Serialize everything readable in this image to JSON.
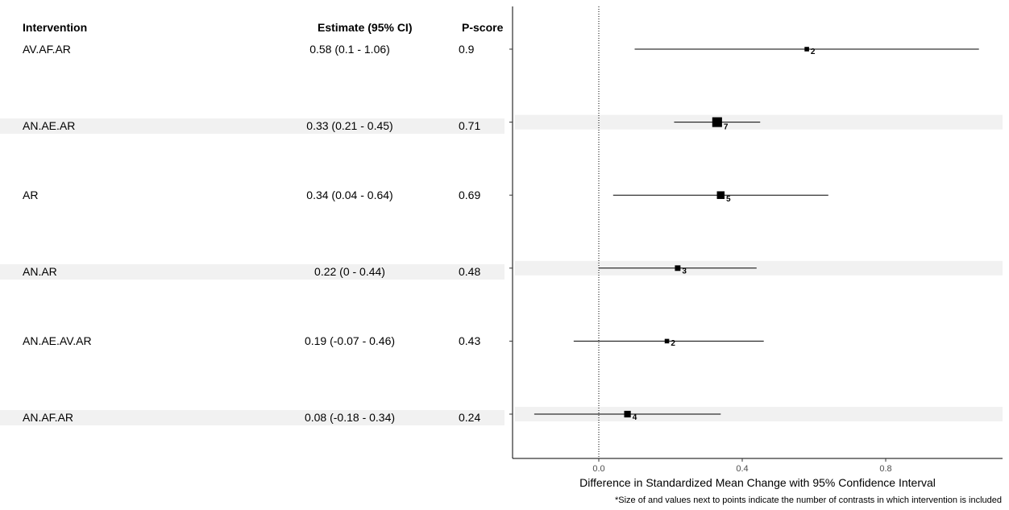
{
  "table": {
    "headers": {
      "intervention": "Intervention",
      "estimate": "Estimate (95% CI)",
      "pscore": "P-score"
    },
    "rows": [
      {
        "intervention": "AV.AF.AR",
        "estimate": "0.58 (0.1 - 1.06)",
        "pscore": "0.9",
        "shaded": false
      },
      {
        "intervention": "AN.AE.AR",
        "estimate": "0.33 (0.21 - 0.45)",
        "pscore": "0.71",
        "shaded": true
      },
      {
        "intervention": "AR",
        "estimate": "0.34 (0.04 - 0.64)",
        "pscore": "0.69",
        "shaded": false
      },
      {
        "intervention": "AN.AR",
        "estimate": "0.22 (0 - 0.44)",
        "pscore": "0.48",
        "shaded": true
      },
      {
        "intervention": "AN.AE.AV.AR",
        "estimate": "0.19 (-0.07 - 0.46)",
        "pscore": "0.43",
        "shaded": false
      },
      {
        "intervention": "AN.AF.AR",
        "estimate": "0.08 (-0.18 - 0.34)",
        "pscore": "0.24",
        "shaded": true
      }
    ]
  },
  "chart_data": {
    "type": "forest",
    "xlabel": "Difference in Standardized Mean Change with 95% Confidence Interval",
    "footnote": "*Size of and values next to points indicate the number of contrasts in which intervention is included",
    "x_ticks": [
      0.0,
      0.4,
      0.8
    ],
    "x_tick_labels": [
      "0.0",
      "0.4",
      "0.8"
    ],
    "xlim": [
      -0.24,
      1.13
    ],
    "reference_line": 0,
    "grid": false,
    "colors": {
      "marker": "#000000",
      "band": "#f1f1f1",
      "axis": "#000000",
      "tick_label": "#4d4d4d"
    },
    "points": [
      {
        "label": "AV.AF.AR",
        "estimate": 0.58,
        "lower": 0.1,
        "upper": 1.06,
        "contrasts": 2,
        "contrasts_label": "2",
        "shaded": false
      },
      {
        "label": "AN.AE.AR",
        "estimate": 0.33,
        "lower": 0.21,
        "upper": 0.45,
        "contrasts": 7,
        "contrasts_label": "7",
        "shaded": true
      },
      {
        "label": "AR",
        "estimate": 0.34,
        "lower": 0.04,
        "upper": 0.64,
        "contrasts": 5,
        "contrasts_label": "5",
        "shaded": false
      },
      {
        "label": "AN.AR",
        "estimate": 0.22,
        "lower": 0,
        "upper": 0.44,
        "contrasts": 3,
        "contrasts_label": "3",
        "shaded": true
      },
      {
        "label": "AN.AE.AV.AR",
        "estimate": 0.19,
        "lower": -0.07,
        "upper": 0.46,
        "contrasts": 2,
        "contrasts_label": "2",
        "shaded": false
      },
      {
        "label": "AN.AF.AR",
        "estimate": 0.08,
        "lower": -0.18,
        "upper": 0.34,
        "contrasts": 4,
        "contrasts_label": "4",
        "shaded": true
      }
    ]
  }
}
